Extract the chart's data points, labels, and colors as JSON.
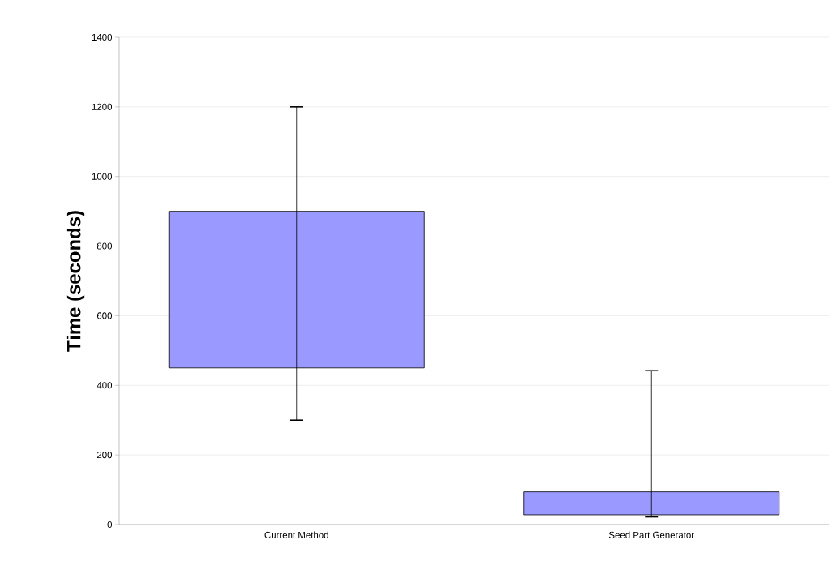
{
  "chart_data": {
    "type": "bar",
    "ylabel": "Time (seconds)",
    "categories": [
      "Current Method",
      "Seed Part Generator"
    ],
    "base": [
      450,
      28
    ],
    "values": [
      450,
      66
    ],
    "errors": [
      [
        300,
        1200
      ],
      [
        22,
        442
      ]
    ],
    "color": "#9999ff",
    "ylim": [
      0,
      1400
    ],
    "yticks": [
      0,
      200,
      400,
      600,
      800,
      1000,
      1200,
      1400
    ],
    "grid": "y"
  }
}
